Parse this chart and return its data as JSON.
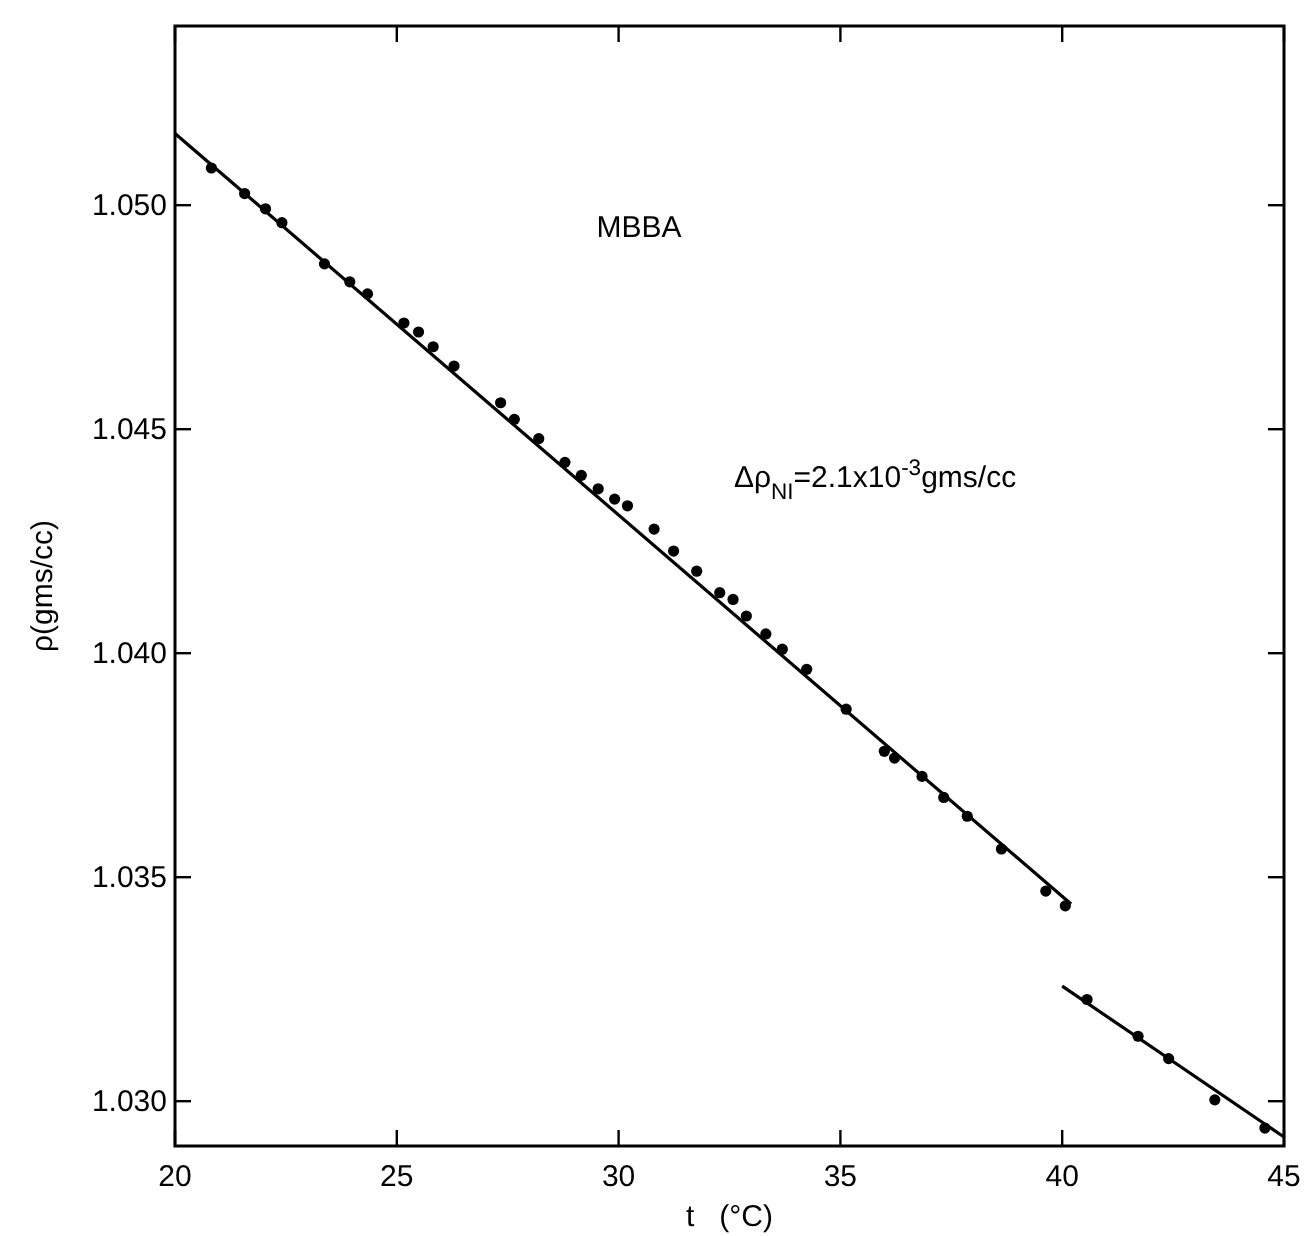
{
  "chart_data": {
    "type": "scatter",
    "xlabel": "t   (°C)",
    "ylabel": "ρ(gms/cc)",
    "annotations": [
      "MBBA",
      "Δρ$_{NI}$=2.1x10$^{-3}$gms/cc"
    ],
    "xlim": [
      20,
      45
    ],
    "ylim": [
      1.029,
      1.054
    ],
    "xticks": [
      20,
      25,
      30,
      35,
      40,
      45
    ],
    "yticks": [
      {
        "value": 1.03,
        "label": "1.030"
      },
      {
        "value": 1.035,
        "label": "1.035"
      },
      {
        "value": 1.04,
        "label": "1.040"
      },
      {
        "value": 1.045,
        "label": "1.045"
      },
      {
        "value": 1.05,
        "label": "1.050"
      }
    ],
    "grid": false,
    "series": [
      {
        "color": "#000000",
        "marker": "circle",
        "x": [
          20.82,
          21.57,
          22.04,
          22.41,
          23.37,
          23.94,
          24.34,
          25.16,
          25.49,
          25.82,
          26.29,
          27.34,
          27.65,
          28.2,
          28.79,
          29.16,
          29.54,
          29.91,
          30.2,
          30.8,
          31.24,
          31.76,
          32.28,
          32.58,
          32.88,
          33.32,
          33.69,
          34.24,
          35.13,
          35.99,
          36.22,
          36.84,
          37.33,
          37.86,
          38.63,
          39.63,
          40.07,
          40.56,
          41.71,
          42.4,
          43.44,
          44.57
        ],
        "values": [
          1.05083,
          1.05026,
          1.04992,
          1.04961,
          1.04869,
          1.04829,
          1.04802,
          1.04737,
          1.04717,
          1.04684,
          1.04641,
          1.04559,
          1.04522,
          1.04479,
          1.04426,
          1.04397,
          1.04367,
          1.04344,
          1.04329,
          1.04277,
          1.04228,
          1.04183,
          1.04135,
          1.0412,
          1.04083,
          1.04043,
          1.04009,
          1.03964,
          1.03875,
          1.03781,
          1.03766,
          1.03725,
          1.03678,
          1.03636,
          1.03563,
          1.03469,
          1.03436,
          1.03227,
          1.03145,
          1.03095,
          1.03003,
          1.0294
        ]
      },
      {
        "type": "line",
        "color": "#000000",
        "marker": "none",
        "line_style": "solid",
        "x": [
          20,
          40.2
        ],
        "values": [
          1.0516,
          1.0344
        ]
      },
      {
        "type": "line",
        "color": "#000000",
        "marker": "none",
        "line_style": "solid",
        "x": [
          40,
          45
        ],
        "values": [
          1.03257,
          1.0292
        ]
      }
    ]
  }
}
